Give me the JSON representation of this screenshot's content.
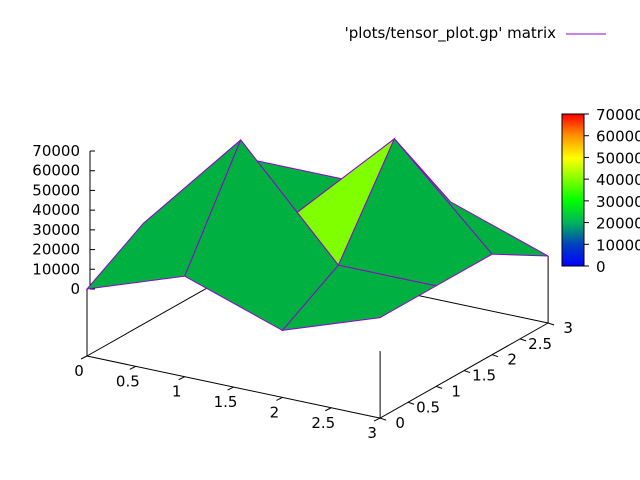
{
  "legend": {
    "label": "'plots/tensor_plot.gp' matrix",
    "line_color": "#9400d3"
  },
  "chart_data": {
    "type": "surface",
    "title": "",
    "xlabel": "",
    "ylabel": "",
    "zlabel": "",
    "x_ticks": [
      "0",
      "0.5",
      "1",
      "1.5",
      "2",
      "2.5",
      "3"
    ],
    "y_ticks": [
      "0",
      "0.5",
      "1",
      "1.5",
      "2",
      "2.5",
      "3"
    ],
    "z_ticks": [
      "0",
      "10000",
      "20000",
      "30000",
      "40000",
      "50000",
      "60000",
      "70000"
    ],
    "xlim": [
      0,
      3
    ],
    "ylim": [
      0,
      3
    ],
    "zlim": [
      0,
      70000
    ],
    "matrix_z": [
      [
        0,
        17000,
        0,
        17000
      ],
      [
        17000,
        70000,
        17000,
        17000
      ],
      [
        17000,
        17000,
        65000,
        17000
      ],
      [
        17000,
        17000,
        17000,
        0
      ]
    ],
    "colorbar": {
      "range": [
        0,
        70000
      ],
      "ticks": [
        "0",
        "10000",
        "20000",
        "30000",
        "40000",
        "50000",
        "60000",
        "70000"
      ],
      "palette": "rgbformulae 7,5,15 style: blue-green-red"
    },
    "face_colors": {
      "low": "#0000ff",
      "mid": "#00b040",
      "high": "#80ff00"
    },
    "mesh_color": "#9400d3"
  }
}
